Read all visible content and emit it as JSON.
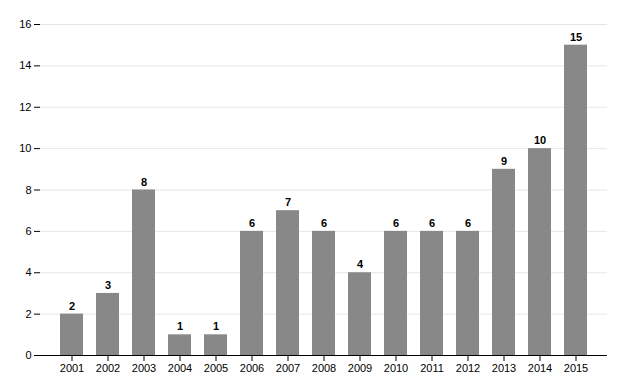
{
  "chart_data": {
    "type": "bar",
    "categories": [
      "2001",
      "2002",
      "2003",
      "2004",
      "2005",
      "2006",
      "2007",
      "2008",
      "2009",
      "2010",
      "2011",
      "2012",
      "2013",
      "2014",
      "2015"
    ],
    "values": [
      2,
      3,
      8,
      1,
      1,
      6,
      7,
      6,
      4,
      6,
      6,
      6,
      9,
      10,
      15
    ],
    "color": "#888888",
    "ylim": [
      0,
      16
    ],
    "yticks": [
      0,
      2,
      4,
      6,
      8,
      10,
      12,
      14,
      16
    ],
    "grid": true,
    "data_labels": true
  }
}
